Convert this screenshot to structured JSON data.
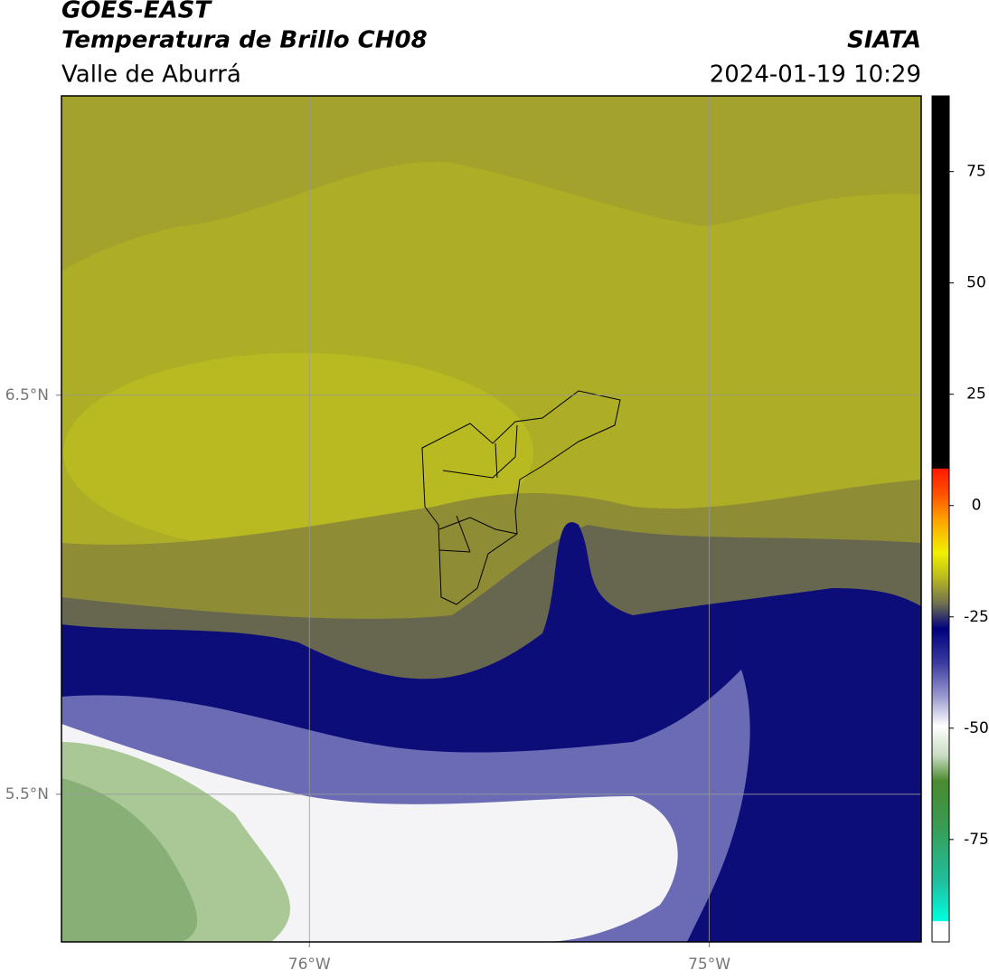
{
  "header": {
    "line1": "GOES-EAST",
    "line2": "Temperatura de Brillo CH08",
    "line3": "Valle de Aburrá",
    "source": "SIATA",
    "datetime": "2024-01-19 10:29"
  },
  "map": {
    "xlim": [
      -76.62,
      -74.47
    ],
    "ylim": [
      5.13,
      7.25
    ],
    "xticks": [
      {
        "value": -76,
        "label": "76°W"
      },
      {
        "value": -75,
        "label": "75°W"
      }
    ],
    "yticks": [
      {
        "value": 6.5,
        "label": "6.5°N"
      },
      {
        "value": 5.5,
        "label": "5.5°N"
      }
    ]
  },
  "colorbar": {
    "lim": [
      -98,
      92
    ],
    "ticks": [
      75,
      50,
      25,
      0,
      -25,
      -50,
      -75
    ]
  }
}
